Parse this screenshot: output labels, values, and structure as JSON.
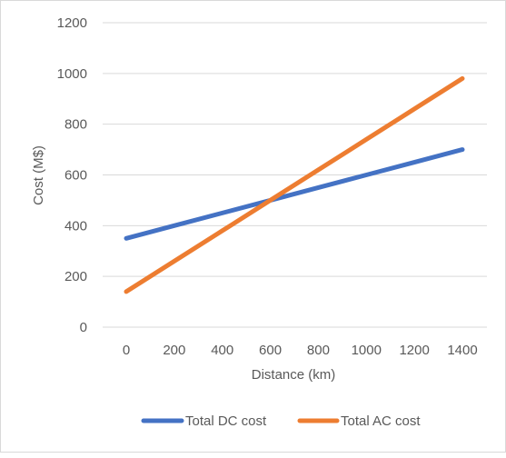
{
  "chart_data": {
    "type": "line",
    "title": "",
    "xlabel": "Distance (km)",
    "ylabel": "Cost (M$)",
    "x": [
      0,
      200,
      400,
      600,
      800,
      1000,
      1200,
      1400
    ],
    "xlim": [
      0,
      1400
    ],
    "ylim": [
      0,
      1200
    ],
    "yticks": [
      0,
      200,
      400,
      600,
      800,
      1000,
      1200
    ],
    "grid": "horizontal",
    "legend_position": "bottom",
    "series": [
      {
        "name": "Total DC cost",
        "color": "#4472C4",
        "values": [
          350,
          400,
          450,
          500,
          550,
          600,
          650,
          700
        ]
      },
      {
        "name": "Total AC cost",
        "color": "#ED7D31",
        "values": [
          140,
          260,
          380,
          500,
          620,
          740,
          860,
          980
        ]
      }
    ]
  }
}
